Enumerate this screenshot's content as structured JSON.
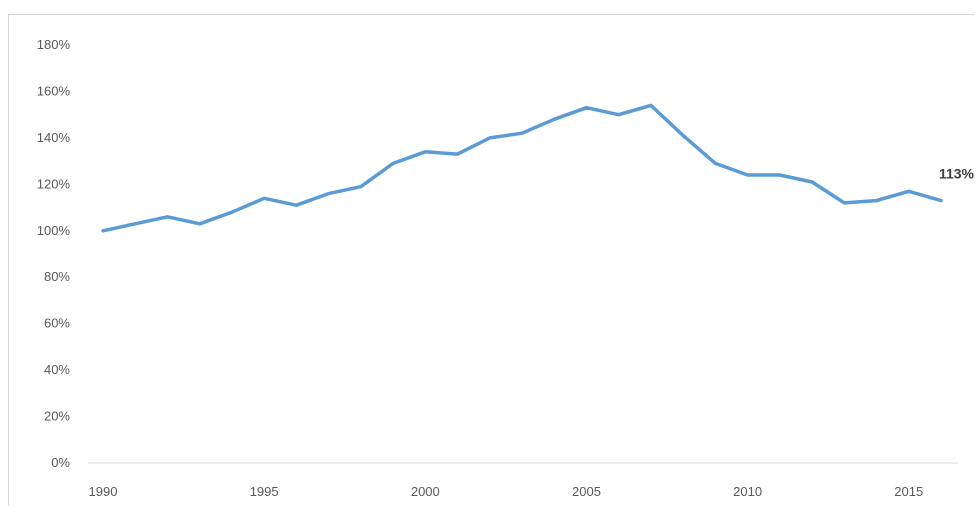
{
  "chart_data": {
    "type": "line",
    "title": "",
    "xlabel": "",
    "ylabel": "",
    "x": [
      1990,
      1991,
      1992,
      1993,
      1994,
      1995,
      1996,
      1997,
      1998,
      1999,
      2000,
      2001,
      2002,
      2003,
      2004,
      2005,
      2006,
      2007,
      2008,
      2009,
      2010,
      2011,
      2012,
      2013,
      2014,
      2015,
      2016
    ],
    "series": [
      {
        "name": "",
        "values": [
          100,
          103,
          106,
          103,
          108,
          114,
          111,
          116,
          119,
          129,
          134,
          133,
          140,
          142,
          148,
          153,
          150,
          154,
          141,
          129,
          124,
          124,
          121,
          112,
          113,
          117,
          113
        ],
        "color": "#5b9bd5"
      }
    ],
    "xlim": [
      1990,
      2016
    ],
    "ylim": [
      0,
      180
    ],
    "x_ticks": [
      1990,
      1995,
      2000,
      2005,
      2010,
      2015
    ],
    "x_tick_labels": [
      "1990",
      "1995",
      "2000",
      "2005",
      "2010",
      "2015"
    ],
    "y_ticks": [
      0,
      20,
      40,
      60,
      80,
      100,
      120,
      140,
      160,
      180
    ],
    "y_tick_labels": [
      "0%",
      "20%",
      "40%",
      "60%",
      "80%",
      "100%",
      "120%",
      "140%",
      "160%",
      "180%"
    ],
    "data_labels": [
      {
        "x": 2016,
        "text": "113%"
      }
    ],
    "grid": false,
    "legend": "none",
    "colors": {
      "line": "#5b9bd5",
      "axis": "#d9d9d9",
      "tick_text": "#595959"
    }
  }
}
